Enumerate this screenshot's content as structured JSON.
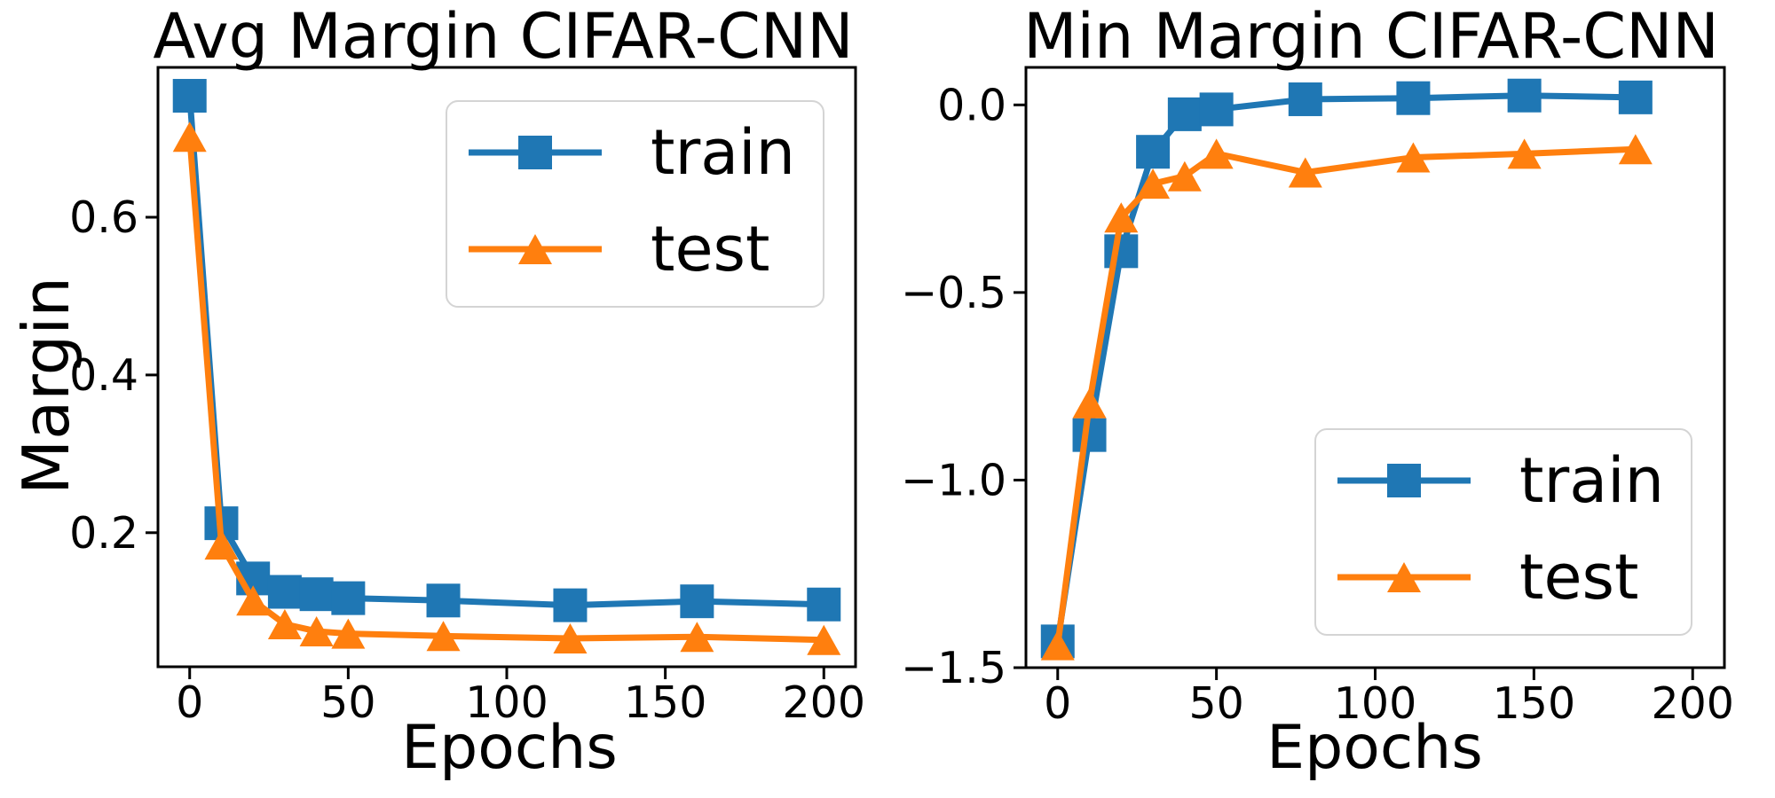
{
  "figure": {
    "background": "#ffffff",
    "text_color": "#000000",
    "train_color": "#1f77b4",
    "test_color": "#ff7f0e"
  },
  "chart_data": [
    {
      "type": "line",
      "title": "Avg Margin CIFAR-CNN",
      "xlabel": "Epochs",
      "ylabel": "Margin",
      "x": [
        0,
        10,
        20,
        30,
        40,
        50,
        80,
        120,
        160,
        200
      ],
      "series": [
        {
          "name": "train",
          "marker": "square",
          "color": "#1f77b4",
          "values": [
            0.754,
            0.212,
            0.142,
            0.125,
            0.122,
            0.117,
            0.114,
            0.108,
            0.113,
            0.109
          ]
        },
        {
          "name": "test",
          "marker": "triangle",
          "color": "#ff7f0e",
          "values": [
            0.702,
            0.185,
            0.114,
            0.084,
            0.075,
            0.072,
            0.069,
            0.066,
            0.068,
            0.064
          ]
        }
      ],
      "xlim": [
        -10,
        210
      ],
      "ylim": [
        0.03,
        0.79
      ],
      "xticks": {
        "values": [
          0,
          50,
          100,
          150,
          200
        ],
        "labels": [
          "0",
          "50",
          "100",
          "150",
          "200"
        ]
      },
      "yticks": {
        "values": [
          0.2,
          0.4,
          0.6
        ],
        "labels": [
          "0.2",
          "0.4",
          "0.6"
        ]
      },
      "legend_position": "upper right",
      "grid": false
    },
    {
      "type": "line",
      "title": "Min Margin CIFAR-CNN",
      "xlabel": "Epochs",
      "ylabel": "",
      "x": [
        0,
        10,
        20,
        30,
        40,
        50,
        78,
        112,
        147,
        182
      ],
      "series": [
        {
          "name": "train",
          "marker": "square",
          "color": "#1f77b4",
          "values": [
            -1.43,
            -0.88,
            -0.39,
            -0.125,
            -0.025,
            -0.012,
            0.015,
            0.018,
            0.025,
            0.02
          ]
        },
        {
          "name": "test",
          "marker": "triangle",
          "color": "#ff7f0e",
          "values": [
            -1.44,
            -0.795,
            -0.3,
            -0.21,
            -0.19,
            -0.13,
            -0.18,
            -0.14,
            -0.13,
            -0.118
          ]
        }
      ],
      "xlim": [
        -10,
        210
      ],
      "ylim": [
        -1.5,
        0.1
      ],
      "xticks": {
        "values": [
          0,
          50,
          100,
          150,
          200
        ],
        "labels": [
          "0",
          "50",
          "100",
          "150",
          "200"
        ]
      },
      "yticks": {
        "values": [
          0.0,
          -0.5,
          -1.0,
          -1.5
        ],
        "labels": [
          "0.0",
          "−0.5",
          "−1.0",
          "−1.5"
        ]
      },
      "legend_position": "lower right",
      "grid": false
    }
  ]
}
